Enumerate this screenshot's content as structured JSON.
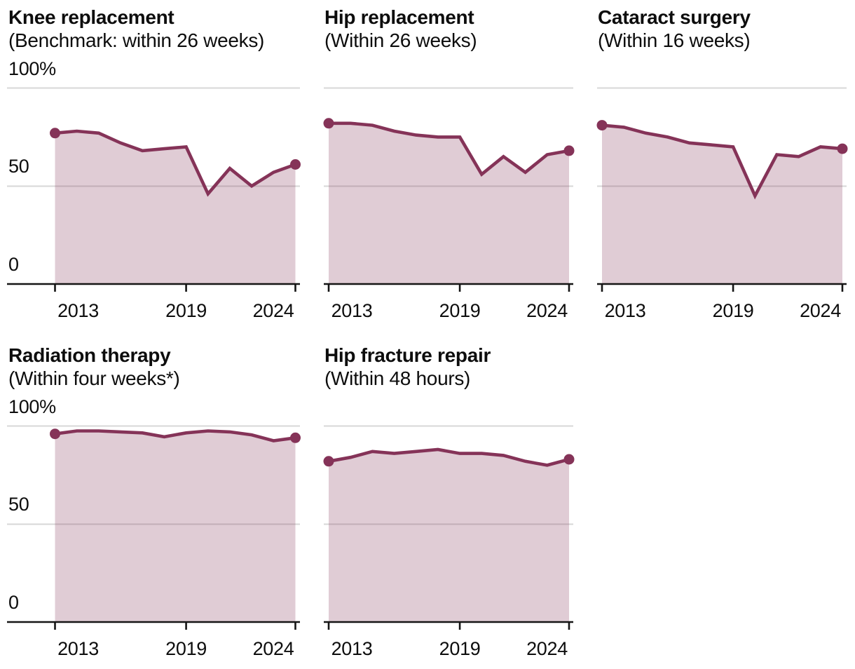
{
  "page": {
    "background": "#ffffff",
    "unit": "%"
  },
  "colors": {
    "line": "#853358",
    "fill": "#853358",
    "fill_opacity": 0.25,
    "grid": "#d7d7d7",
    "axis": "#151515",
    "text": "#0d0d0d"
  },
  "chart_data": [
    {
      "type": "area",
      "title": "Knee replacement",
      "subtitle": "(Benchmark: within 26 weeks)",
      "x": [
        2013,
        2014,
        2015,
        2016,
        2017,
        2018,
        2019,
        2020,
        2021,
        2022,
        2023,
        2024
      ],
      "values": [
        77,
        78,
        77,
        72,
        68,
        69,
        70,
        46,
        59,
        50,
        57,
        61
      ],
      "ylim": [
        0,
        100
      ],
      "y_ticks": [
        {
          "value": 100,
          "label": "100%"
        },
        {
          "value": 50,
          "label": "50"
        },
        {
          "value": 0,
          "label": "0"
        }
      ],
      "show_y_labels": true,
      "x_ticks": [
        {
          "year": 2013,
          "label": "2013"
        },
        {
          "year": 2019,
          "label": "2019"
        },
        {
          "year": 2024,
          "label": "2024"
        }
      ],
      "markers": "first and last point",
      "grid": "horizontal only",
      "legend": "none"
    },
    {
      "type": "area",
      "title": "Hip replacement",
      "subtitle": "(Within 26 weeks)",
      "x": [
        2013,
        2014,
        2015,
        2016,
        2017,
        2018,
        2019,
        2020,
        2021,
        2022,
        2023,
        2024
      ],
      "values": [
        82,
        82,
        81,
        78,
        76,
        75,
        75,
        56,
        65,
        57,
        66,
        68
      ],
      "ylim": [
        0,
        100
      ],
      "y_ticks": [
        {
          "value": 100,
          "label": "100%"
        },
        {
          "value": 50,
          "label": "50"
        },
        {
          "value": 0,
          "label": "0"
        }
      ],
      "show_y_labels": false,
      "x_ticks": [
        {
          "year": 2013,
          "label": "2013"
        },
        {
          "year": 2019,
          "label": "2019"
        },
        {
          "year": 2024,
          "label": "2024"
        }
      ],
      "markers": "first and last point",
      "grid": "horizontal only",
      "legend": "none"
    },
    {
      "type": "area",
      "title": "Cataract surgery",
      "subtitle": "(Within 16 weeks)",
      "x": [
        2013,
        2014,
        2015,
        2016,
        2017,
        2018,
        2019,
        2020,
        2021,
        2022,
        2023,
        2024
      ],
      "values": [
        81,
        80,
        77,
        75,
        72,
        71,
        70,
        45,
        66,
        65,
        70,
        69
      ],
      "ylim": [
        0,
        100
      ],
      "y_ticks": [
        {
          "value": 100,
          "label": "100%"
        },
        {
          "value": 50,
          "label": "50"
        },
        {
          "value": 0,
          "label": "0"
        }
      ],
      "show_y_labels": false,
      "x_ticks": [
        {
          "year": 2013,
          "label": "2013"
        },
        {
          "year": 2019,
          "label": "2019"
        },
        {
          "year": 2024,
          "label": "2024"
        }
      ],
      "markers": "first and last point",
      "grid": "horizontal only",
      "legend": "none"
    },
    {
      "type": "area",
      "title": "Radiation therapy",
      "subtitle": "(Within four weeks*)",
      "x": [
        2013,
        2014,
        2015,
        2016,
        2017,
        2018,
        2019,
        2020,
        2021,
        2022,
        2023,
        2024
      ],
      "values": [
        96,
        97.5,
        97.5,
        97,
        96.5,
        94.5,
        96.5,
        97.5,
        97,
        95.5,
        92.5,
        94
      ],
      "ylim": [
        0,
        100
      ],
      "y_ticks": [
        {
          "value": 100,
          "label": "100%"
        },
        {
          "value": 50,
          "label": "50"
        },
        {
          "value": 0,
          "label": "0"
        }
      ],
      "show_y_labels": true,
      "x_ticks": [
        {
          "year": 2013,
          "label": "2013"
        },
        {
          "year": 2019,
          "label": "2019"
        },
        {
          "year": 2024,
          "label": "2024"
        }
      ],
      "markers": "first and last point",
      "grid": "horizontal only",
      "legend": "none"
    },
    {
      "type": "area",
      "title": "Hip fracture repair",
      "subtitle": "(Within 48 hours)",
      "x": [
        2013,
        2014,
        2015,
        2016,
        2017,
        2018,
        2019,
        2020,
        2021,
        2022,
        2023,
        2024
      ],
      "values": [
        82,
        84,
        87,
        86,
        87,
        88,
        86,
        86,
        85,
        82,
        80,
        83
      ],
      "ylim": [
        0,
        100
      ],
      "y_ticks": [
        {
          "value": 100,
          "label": "100%"
        },
        {
          "value": 50,
          "label": "50"
        },
        {
          "value": 0,
          "label": "0"
        }
      ],
      "show_y_labels": false,
      "x_ticks": [
        {
          "year": 2013,
          "label": "2013"
        },
        {
          "year": 2019,
          "label": "2019"
        },
        {
          "year": 2024,
          "label": "2024"
        }
      ],
      "markers": "first and last point",
      "grid": "horizontal only",
      "legend": "none"
    }
  ]
}
